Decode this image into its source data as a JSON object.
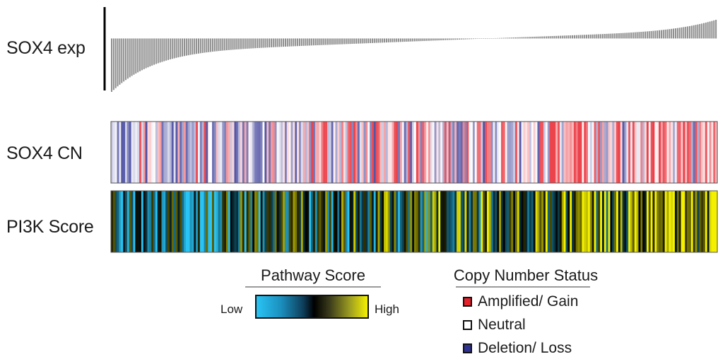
{
  "labels": {
    "exp": "SOX4 exp",
    "cn": "SOX4 CN",
    "pi3k": "PI3K Score"
  },
  "pathway_legend": {
    "title": "Pathway Score",
    "low": "Low",
    "high": "High",
    "colors": [
      "#29c4f4",
      "#000000",
      "#f4f000"
    ]
  },
  "cn_legend": {
    "title": "Copy Number Status",
    "items": [
      {
        "label": "Amplified/ Gain",
        "color": "#e8202a"
      },
      {
        "label": "Neutral",
        "color": "#ffffff"
      },
      {
        "label": "Deletion/ Loss",
        "color": "#2e3192"
      }
    ]
  },
  "chart_data": {
    "type": "heatmap",
    "n_samples": 300,
    "rows": [
      "SOX4 exp",
      "SOX4 CN",
      "PI3K Score"
    ],
    "sox4_exp": {
      "type": "bar",
      "sort": "ascending",
      "approx_range": [
        -1.0,
        0.35
      ],
      "zero_fraction": 0.62,
      "bar_color": "#8c8c8c"
    },
    "sox4_cn": {
      "scale": [
        "#2e3192",
        "#ffffff",
        "#e8202a"
      ],
      "trend": "more deletion on left, more amplification on right"
    },
    "pi3k_score": {
      "scale": [
        "#29c4f4",
        "#000000",
        "#f4f000"
      ],
      "trend": "low (blue) on left, high (yellow) on right"
    }
  }
}
